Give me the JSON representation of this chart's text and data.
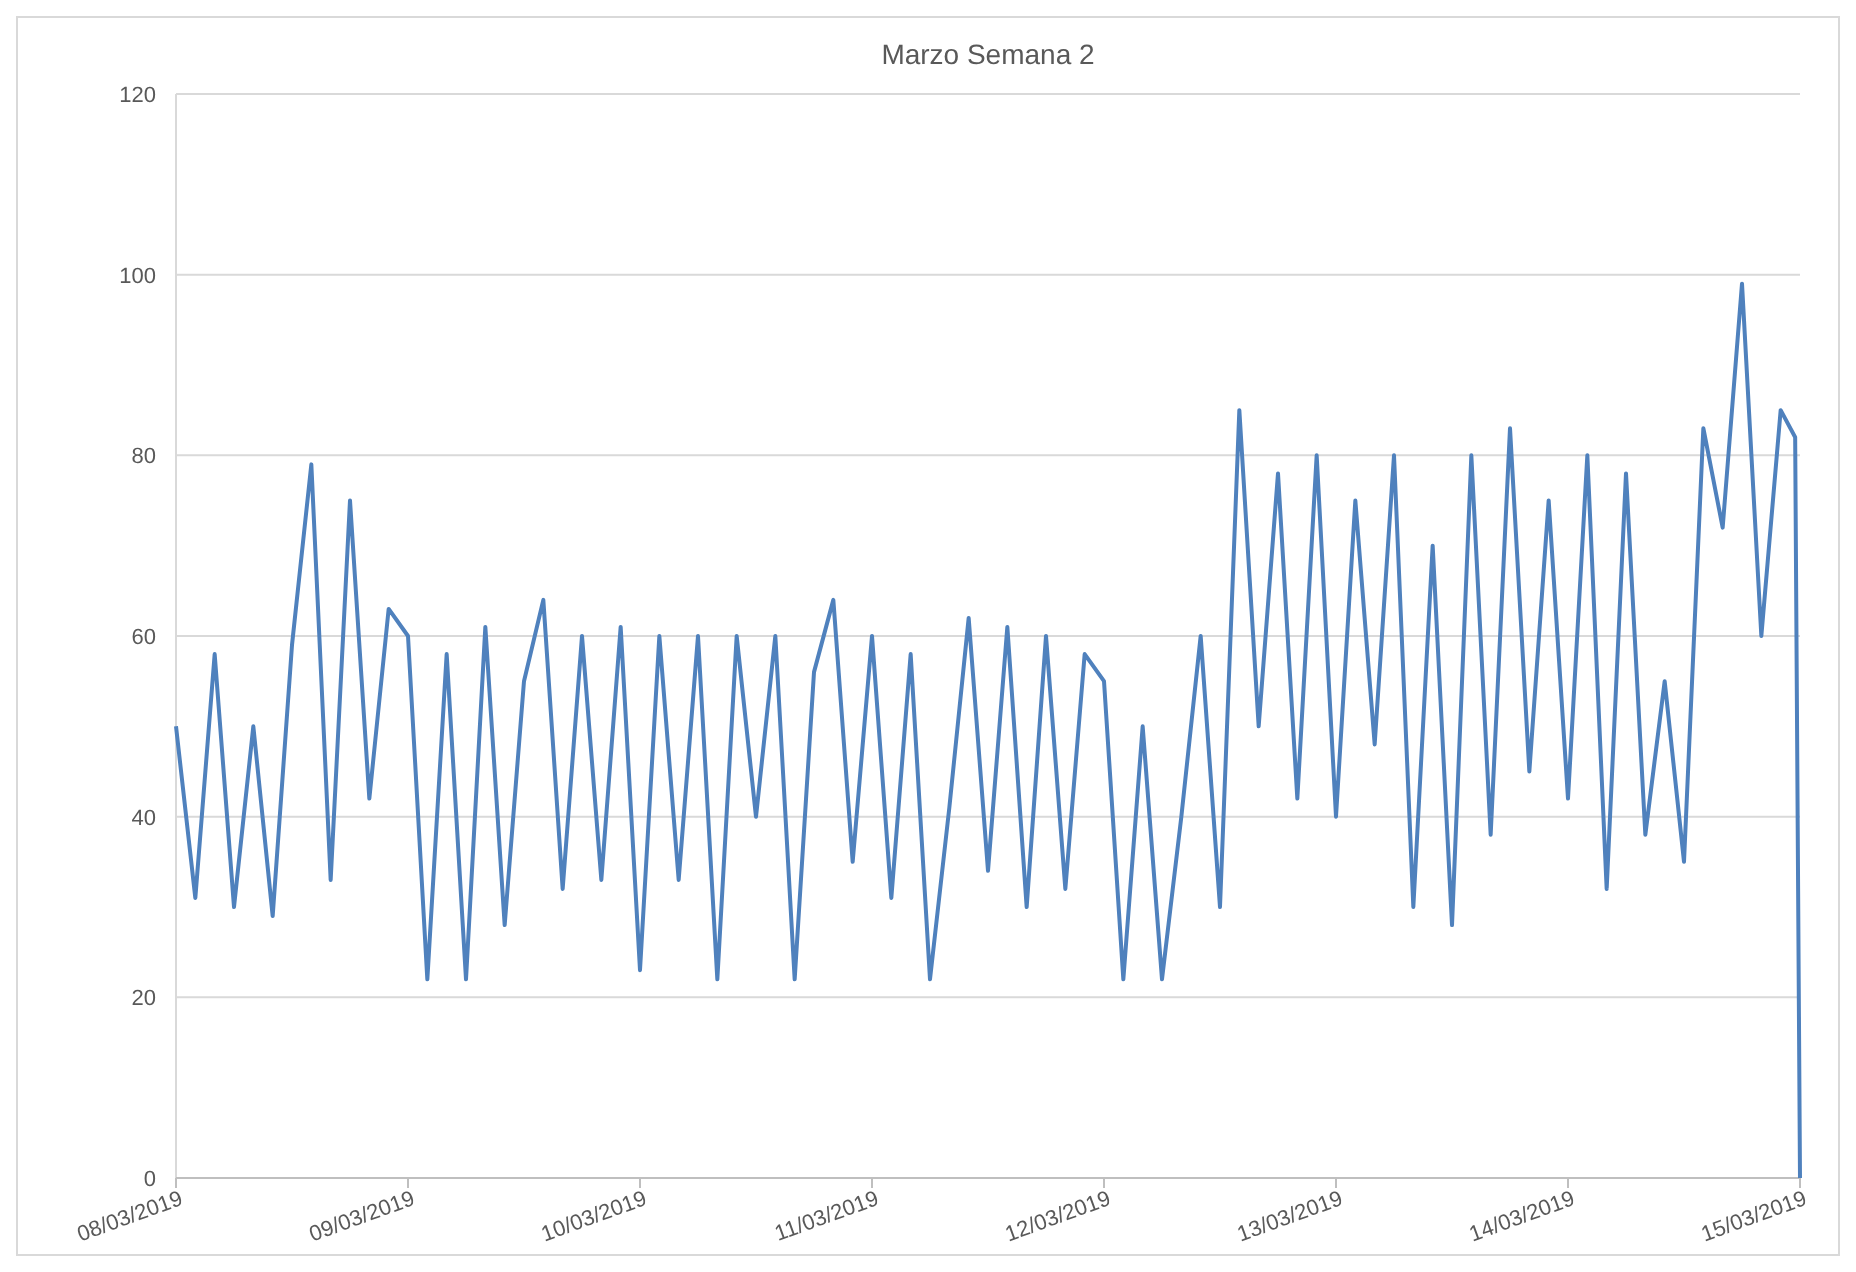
{
  "chart_data": {
    "type": "line",
    "title": "Marzo Semana 2",
    "x": [
      "2019-03-08T00:00",
      "2019-03-08T02:00",
      "2019-03-08T04:00",
      "2019-03-08T06:00",
      "2019-03-08T08:00",
      "2019-03-08T10:00",
      "2019-03-08T12:00",
      "2019-03-08T14:00",
      "2019-03-08T16:00",
      "2019-03-08T18:00",
      "2019-03-08T20:00",
      "2019-03-08T22:00",
      "2019-03-09T00:00",
      "2019-03-09T02:00",
      "2019-03-09T04:00",
      "2019-03-09T06:00",
      "2019-03-09T08:00",
      "2019-03-09T10:00",
      "2019-03-09T12:00",
      "2019-03-09T14:00",
      "2019-03-09T16:00",
      "2019-03-09T18:00",
      "2019-03-09T20:00",
      "2019-03-09T22:00",
      "2019-03-10T00:00",
      "2019-03-10T02:00",
      "2019-03-10T04:00",
      "2019-03-10T06:00",
      "2019-03-10T08:00",
      "2019-03-10T10:00",
      "2019-03-10T12:00",
      "2019-03-10T14:00",
      "2019-03-10T16:00",
      "2019-03-10T18:00",
      "2019-03-10T20:00",
      "2019-03-10T22:00",
      "2019-03-11T00:00",
      "2019-03-11T02:00",
      "2019-03-11T04:00",
      "2019-03-11T06:00",
      "2019-03-11T08:00",
      "2019-03-11T10:00",
      "2019-03-11T12:00",
      "2019-03-11T14:00",
      "2019-03-11T16:00",
      "2019-03-11T18:00",
      "2019-03-11T20:00",
      "2019-03-11T22:00",
      "2019-03-12T00:00",
      "2019-03-12T02:00",
      "2019-03-12T04:00",
      "2019-03-12T06:00",
      "2019-03-12T08:00",
      "2019-03-12T10:00",
      "2019-03-12T12:00",
      "2019-03-12T14:00",
      "2019-03-12T16:00",
      "2019-03-12T18:00",
      "2019-03-12T20:00",
      "2019-03-12T22:00",
      "2019-03-13T00:00",
      "2019-03-13T02:00",
      "2019-03-13T04:00",
      "2019-03-13T06:00",
      "2019-03-13T08:00",
      "2019-03-13T10:00",
      "2019-03-13T12:00",
      "2019-03-13T14:00",
      "2019-03-13T16:00",
      "2019-03-13T18:00",
      "2019-03-13T20:00",
      "2019-03-13T22:00",
      "2019-03-14T00:00",
      "2019-03-14T02:00",
      "2019-03-14T04:00",
      "2019-03-14T06:00",
      "2019-03-14T08:00",
      "2019-03-14T10:00",
      "2019-03-14T12:00",
      "2019-03-14T14:00",
      "2019-03-14T16:00",
      "2019-03-14T18:00",
      "2019-03-14T20:00",
      "2019-03-14T22:00",
      "2019-03-14T23:30",
      "2019-03-15T00:00"
    ],
    "series": [
      {
        "color": "#4f81bd",
        "values": [
          50,
          31,
          58,
          30,
          50,
          29,
          59,
          79,
          33,
          75,
          42,
          63,
          60,
          22,
          58,
          22,
          61,
          28,
          55,
          64,
          32,
          60,
          33,
          61,
          23,
          60,
          33,
          60,
          22,
          60,
          40,
          60,
          22,
          56,
          64,
          35,
          60,
          31,
          58,
          22,
          41,
          62,
          34,
          61,
          30,
          60,
          32,
          58,
          55,
          22,
          50,
          22,
          40,
          60,
          30,
          85,
          50,
          78,
          42,
          80,
          40,
          75,
          48,
          80,
          30,
          70,
          28,
          80,
          38,
          83,
          45,
          75,
          42,
          80,
          32,
          78,
          38,
          55,
          35,
          83,
          72,
          99,
          60,
          85,
          82,
          0
        ]
      }
    ],
    "xlim": [
      "2019-03-08",
      "2019-03-15"
    ],
    "xticks": [
      {
        "value": "2019-03-08",
        "label": "08/03/2019"
      },
      {
        "value": "2019-03-09",
        "label": "09/03/2019"
      },
      {
        "value": "2019-03-10",
        "label": "10/03/2019"
      },
      {
        "value": "2019-03-11",
        "label": "11/03/2019"
      },
      {
        "value": "2019-03-12",
        "label": "12/03/2019"
      },
      {
        "value": "2019-03-13",
        "label": "13/03/2019"
      },
      {
        "value": "2019-03-14",
        "label": "14/03/2019"
      },
      {
        "value": "2019-03-15",
        "label": "15/03/2019"
      }
    ],
    "ylim": [
      0,
      120
    ],
    "yticks": [
      0,
      20,
      40,
      60,
      80,
      100,
      120
    ],
    "grid": "y",
    "marker": "none",
    "line_style": "solid"
  }
}
